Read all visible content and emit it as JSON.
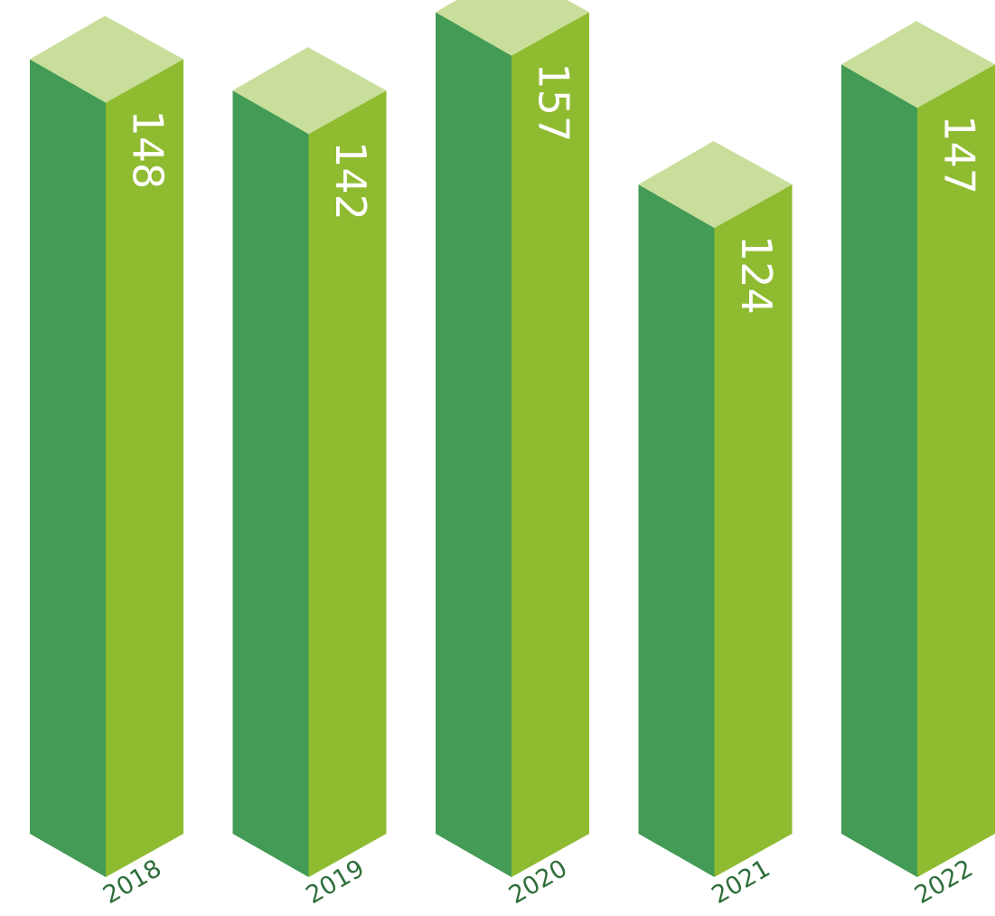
{
  "chart_data": {
    "type": "bar",
    "style": "3d-isometric-columns",
    "categories": [
      "2018",
      "2019",
      "2020",
      "2021",
      "2022"
    ],
    "values": [
      148,
      142,
      157,
      124,
      147
    ],
    "value_labels": [
      "148",
      "142",
      "157",
      "124",
      "147"
    ],
    "title": "",
    "xlabel": "",
    "ylabel": "",
    "grid": false,
    "legend": "none",
    "colors": {
      "front_face": "#8fbb31",
      "side_face": "#439b55",
      "top_face": "#c9de9a",
      "year_text": "#2e6e3a",
      "value_text": "#ffffff"
    }
  }
}
